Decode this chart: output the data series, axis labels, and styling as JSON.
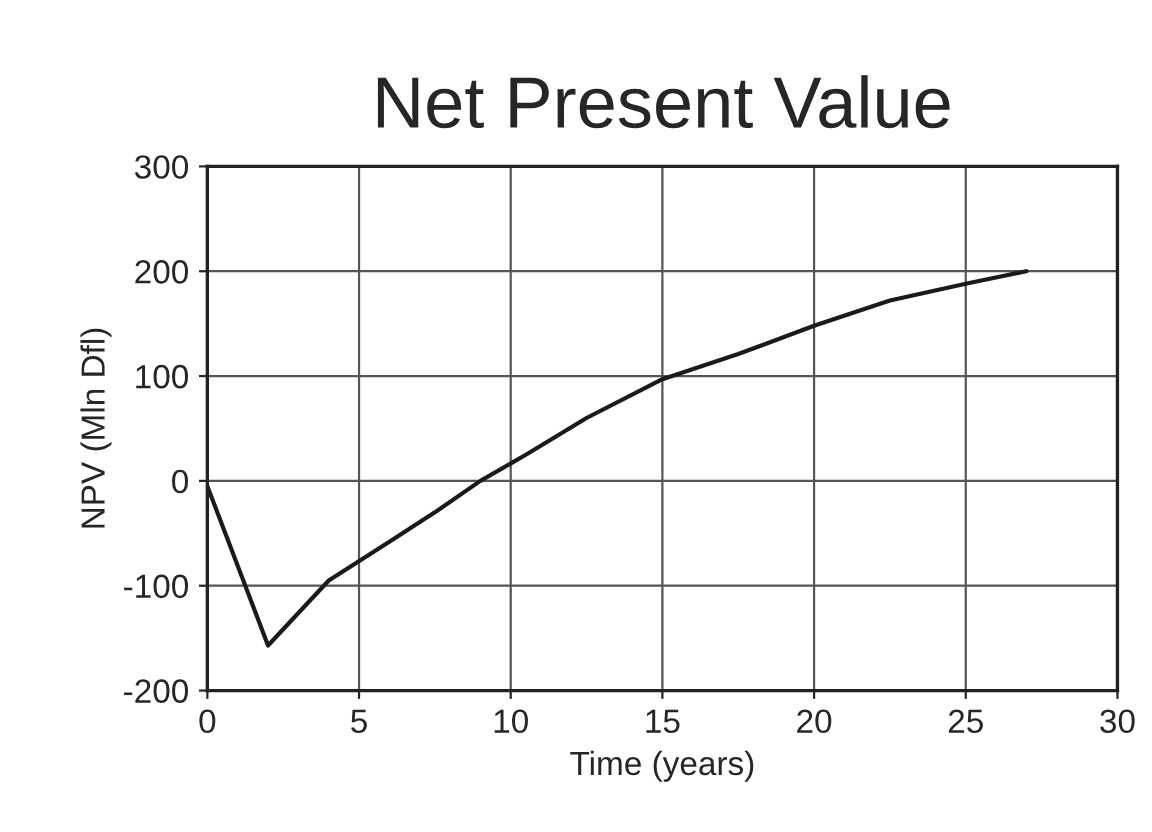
{
  "chart_data": {
    "type": "line",
    "title": "Net Present Value",
    "xlabel": "Time (years)",
    "ylabel": "NPV (Mln Dfl)",
    "x": [
      0,
      2,
      4,
      6,
      7.5,
      9,
      10.5,
      12.5,
      15,
      17.5,
      20,
      22.5,
      25,
      27
    ],
    "series": [
      {
        "color": "#1a1a1a",
        "values": [
          -5,
          -157,
          -95,
          -58,
          -30,
          0,
          25,
          60,
          97,
          121,
          148,
          172,
          188,
          200
        ]
      }
    ],
    "xlim": [
      0,
      30
    ],
    "xticks": [
      0,
      5,
      10,
      15,
      20,
      25,
      30
    ],
    "ylim": [
      -200,
      300
    ],
    "yticks": [
      -200,
      -100,
      0,
      100,
      200,
      300
    ],
    "grid": true,
    "marker": "none",
    "line_style": "solid"
  }
}
